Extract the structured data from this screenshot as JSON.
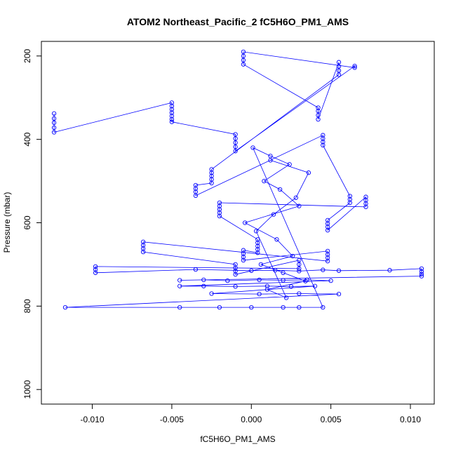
{
  "chart_data": {
    "type": "scatter",
    "title": "ATOM2 Northeast_Pacific_2 fC5H6O_PM1_AMS",
    "xlabel": "fC5H6O_PM1_AMS",
    "ylabel": "Pressure (mbar)",
    "xlim": [
      -0.0132,
      0.0115
    ],
    "ylim": [
      1035,
      165
    ],
    "y_reversed": true,
    "x_ticks": [
      -0.01,
      -0.005,
      0.0,
      0.005,
      0.01
    ],
    "x_tick_labels": [
      "-0.010",
      "-0.005",
      "0.000",
      "0.005",
      "0.010"
    ],
    "y_ticks": [
      200,
      400,
      600,
      800,
      1000
    ],
    "y_tick_labels": [
      "200",
      "400",
      "600",
      "800",
      "1000"
    ],
    "grid": false,
    "legend": "none",
    "style": {
      "color": "#0000ff",
      "marker": "open-circle",
      "connected": true
    },
    "series": [
      {
        "x": [
          -0.0124,
          -0.0124,
          -0.0124,
          -0.0124,
          -0.0124,
          -0.005,
          -0.005,
          -0.005,
          -0.005,
          -0.005,
          -0.005,
          -0.005,
          -0.001,
          -0.001,
          -0.001,
          -0.001,
          -0.001,
          0.0065,
          0.0065,
          -0.0005,
          -0.0005,
          -0.0005,
          -0.0005,
          0.0042,
          0.0042,
          0.0042,
          0.0042,
          0.0055,
          0.0055,
          0.0055,
          0.0055,
          -0.0025,
          -0.0025,
          -0.0025,
          -0.0025,
          -0.0025,
          -0.0035,
          -0.0035,
          -0.0035,
          -0.0035,
          0.0045,
          0.0045,
          0.0045,
          0.0045,
          0.0062,
          0.0062,
          0.0062,
          0.0048,
          0.0048,
          0.0048,
          0.0048,
          0.0072,
          0.0072,
          0.0072,
          0.0072,
          -0.002,
          -0.002,
          -0.002,
          -0.002,
          -0.002,
          0.0004,
          0.0004,
          0.0004,
          0.0004,
          0.0004,
          -0.0005,
          -0.0005,
          -0.0005,
          -0.0005,
          0.0048,
          0.0048,
          0.0048,
          0.0048,
          -0.0068,
          -0.0068,
          -0.0068,
          -0.0068,
          -0.001,
          -0.001,
          -0.001,
          -0.001,
          0.003,
          0.003,
          0.003,
          -0.0098,
          -0.0098,
          -0.0098,
          -0.0035,
          0.0,
          0.0015,
          0.003,
          0.0045,
          0.0055,
          0.0087,
          0.0107,
          0.0107,
          0.0107,
          0.0107,
          -0.0045,
          -0.003,
          -0.0015,
          0.0005,
          0.002,
          0.0035,
          0.005,
          -0.0045,
          -0.003,
          -0.001,
          0.001,
          0.0025,
          0.004,
          -0.0025,
          0.0005,
          0.003,
          0.0055,
          -0.0117,
          -0.0045,
          -0.002,
          0.0,
          0.002,
          0.003,
          0.0045,
          0.0001,
          0.0012,
          0.0024,
          0.0008,
          0.0018,
          0.003,
          -0.0004,
          0.0016,
          0.0026,
          0.0006,
          0.002,
          0.0034,
          0.001,
          0.0022,
          0.0003,
          0.0014,
          0.0028,
          0.0036,
          0.0012
        ],
        "y": [
          338,
          350,
          360,
          372,
          383,
          312,
          320,
          328,
          336,
          344,
          352,
          358,
          388,
          398,
          408,
          418,
          428,
          224,
          228,
          190,
          200,
          210,
          220,
          324,
          332,
          342,
          352,
          215,
          225,
          235,
          245,
          472,
          480,
          488,
          496,
          505,
          510,
          518,
          526,
          535,
          390,
          398,
          406,
          414,
          536,
          544,
          552,
          594,
          602,
          610,
          618,
          538,
          546,
          554,
          562,
          552,
          560,
          568,
          576,
          584,
          640,
          648,
          656,
          664,
          672,
          666,
          674,
          682,
          690,
          668,
          676,
          684,
          692,
          646,
          654,
          662,
          670,
          700,
          708,
          716,
          724,
          690,
          700,
          710,
          705,
          712,
          720,
          712,
          715,
          714,
          716,
          713,
          715,
          714,
          710,
          717,
          723,
          728,
          738,
          737,
          739,
          737,
          738,
          737,
          739,
          752,
          752,
          753,
          752,
          753,
          752,
          770,
          771,
          770,
          771,
          803,
          803,
          803,
          803,
          803,
          803,
          803,
          420,
          440,
          460,
          500,
          520,
          560,
          600,
          640,
          680,
          700,
          720,
          740,
          760,
          780,
          620,
          580,
          540,
          480,
          450
        ]
      }
    ]
  }
}
